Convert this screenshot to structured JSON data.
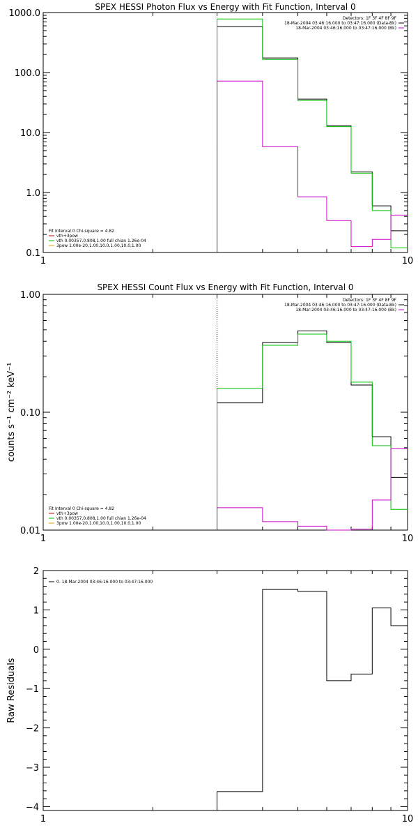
{
  "chart_data": [
    {
      "type": "line",
      "title": "SPEX HESSI Photon Flux vs Energy with Fit Function, Interval 0",
      "xscale": "log",
      "yscale": "log",
      "xlim": [
        1,
        10
      ],
      "ylim": [
        0.1,
        1000
      ],
      "x_tick_labels": [
        "1",
        "10"
      ],
      "y_tick_labels": [
        "0.1",
        "1.0",
        "10.0",
        "100.0",
        "1000.0"
      ],
      "vline": {
        "x": 3,
        "style": "dotted",
        "color": "#00c000"
      },
      "legend_right": [
        {
          "text": "Detectors: 1F 3F 4F 8F 9F"
        },
        {
          "text": "18-Mar-2004 03:46:16.000 to 03:47:16.000 (Data-Bk)",
          "color": "#000000"
        },
        {
          "text": "18-Mar-2004 03:46:16.000 to 03:47:16.000 (Bk)",
          "color": "#cc00cc"
        }
      ],
      "legend_left": [
        {
          "text": "Fit Interval 0   Chi-square = 4.82"
        },
        {
          "text": "vth+3pow",
          "color": "#cc0000"
        },
        {
          "text": "vth 0.00357,0.808,1.00  full chian 1.26e-04",
          "color": "#00c000"
        },
        {
          "text": "3pow 1.00e-20,1.00,10.0,1.00,10.0,1.00",
          "color": "#e0a000"
        }
      ],
      "bin_edges": [
        3.0,
        4.0,
        5.0,
        6.0,
        7.0,
        8.0,
        9.0,
        10.0
      ],
      "series": [
        {
          "color": "#000000",
          "values": [
            580,
            175,
            36,
            13,
            2.2,
            0.6,
            0.23
          ]
        },
        {
          "color": "#00c000",
          "values": [
            780,
            165,
            34,
            12.5,
            2.1,
            0.5,
            0.12
          ]
        },
        {
          "color": "#cc00cc",
          "values": [
            72,
            5.8,
            0.85,
            0.34,
            0.125,
            0.165,
            0.42
          ]
        }
      ]
    },
    {
      "type": "line",
      "title": "SPEX HESSI Count Flux vs Energy with Fit Function, Interval 0",
      "ylabel": "counts s⁻¹ cm⁻² keV⁻¹",
      "xscale": "log",
      "yscale": "log",
      "xlim": [
        1,
        10
      ],
      "ylim": [
        0.01,
        1.0
      ],
      "x_tick_labels": [
        "1",
        "10"
      ],
      "y_tick_labels": [
        "0.01",
        "0.10",
        "1.00"
      ],
      "vline": {
        "x": 3,
        "style": "dotted",
        "color": "#000000"
      },
      "legend_right": [
        {
          "text": "Detectors: 1F 3F 4F 8F 9F"
        },
        {
          "text": "18-Mar-2004 03:46:16.000 to 03:47:16.000 (Data-Bk)",
          "color": "#000000"
        },
        {
          "text": "18-Mar-2004 03:46:16.000 to 03:47:16.000 (Bk)",
          "color": "#cc00cc"
        }
      ],
      "legend_left": [
        {
          "text": "Fit Interval 0   Chi-square = 4.82"
        },
        {
          "text": "vth+3pow",
          "color": "#cc0000"
        },
        {
          "text": "vth 0.00357,0.808,1.00  full chian 1.26e-04",
          "color": "#00c000"
        },
        {
          "text": "3pow 1.00e-20,1.00,10.0,1.00,10.0,1.00",
          "color": "#e0a000"
        }
      ],
      "bin_edges": [
        3.0,
        4.0,
        5.0,
        6.0,
        7.0,
        8.0,
        9.0,
        10.0
      ],
      "series": [
        {
          "color": "#000000",
          "values": [
            0.12,
            0.39,
            0.49,
            0.39,
            0.17,
            0.062,
            0.028
          ]
        },
        {
          "color": "#00c000",
          "values": [
            0.16,
            0.37,
            0.46,
            0.4,
            0.18,
            0.052,
            0.015
          ]
        },
        {
          "color": "#cc00cc",
          "values": [
            0.0155,
            0.0118,
            0.0108,
            0.01,
            0.0102,
            0.018,
            0.049
          ]
        }
      ]
    },
    {
      "type": "line",
      "title": "",
      "ylabel": "Raw Residuals",
      "xscale": "log",
      "yscale": "linear",
      "xlim": [
        1,
        10
      ],
      "ylim": [
        -4.1,
        2.0
      ],
      "x_tick_labels": [
        "1",
        "10"
      ],
      "y_tick_values": [
        2,
        1,
        0,
        -1,
        -2,
        -3,
        -4
      ],
      "y_tick_labels": [
        "2",
        "1",
        "0",
        "−1",
        "−2",
        "−3",
        "−4"
      ],
      "legend_left": [
        {
          "text": "0. 18-Mar-2004 03:46:16.000 to 03:47:16.000",
          "color": "#000000"
        }
      ],
      "bin_edges": [
        3.0,
        4.0,
        5.0,
        6.0,
        7.0,
        8.0,
        9.0,
        10.0
      ],
      "series": [
        {
          "color": "#000000",
          "values": [
            -3.62,
            1.52,
            1.47,
            -0.8,
            -0.63,
            1.05,
            0.6
          ]
        }
      ]
    }
  ]
}
